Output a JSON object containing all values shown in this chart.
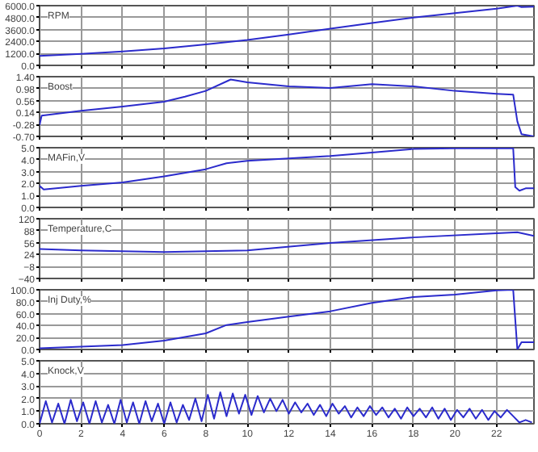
{
  "chart_data": [
    {
      "type": "line",
      "title": "RPM",
      "x": [
        0,
        2,
        4,
        6,
        8,
        10,
        12,
        14,
        16,
        18,
        20,
        22,
        23,
        23.2,
        23.8
      ],
      "values": [
        960,
        1150,
        1400,
        1700,
        2100,
        2550,
        3100,
        3680,
        4250,
        4800,
        5250,
        5700,
        6000,
        5850,
        5900
      ],
      "color": "#2b2bcc",
      "xlim": [
        0,
        23.8
      ],
      "ylim": [
        0,
        6000
      ],
      "yticks": [
        {
          "value": 0,
          "label": "0.0"
        },
        {
          "value": 1200,
          "label": "1200.0"
        },
        {
          "value": 2400,
          "label": "2400.0"
        },
        {
          "value": 3600,
          "label": "3600.0"
        },
        {
          "value": 4800,
          "label": "4800.0"
        },
        {
          "value": 6000,
          "label": "6000.0"
        }
      ],
      "xticks": [
        0,
        2,
        4,
        6,
        8,
        10,
        12,
        14,
        16,
        18,
        20,
        22
      ],
      "grid": true,
      "tick_labels": "y"
    },
    {
      "type": "line",
      "title": "Boost",
      "x": [
        0,
        0.1,
        2,
        4,
        6,
        7,
        8,
        9.2,
        10,
        12,
        14,
        16,
        18,
        20,
        22,
        22.8,
        23,
        23.2,
        23.8
      ],
      "values": [
        -0.3,
        0.03,
        0.2,
        0.35,
        0.52,
        0.7,
        0.9,
        1.3,
        1.2,
        1.06,
        1.0,
        1.14,
        1.06,
        0.9,
        0.8,
        0.77,
        -0.17,
        -0.62,
        -0.7
      ],
      "color": "#2b2bcc",
      "xlim": [
        0,
        23.8
      ],
      "ylim": [
        -0.7,
        1.4
      ],
      "yticks": [
        {
          "value": -0.7,
          "label": "-0.70"
        },
        {
          "value": -0.28,
          "label": "-0.28"
        },
        {
          "value": 0.14,
          "label": "0.14"
        },
        {
          "value": 0.56,
          "label": "0.56"
        },
        {
          "value": 0.98,
          "label": "0.98"
        },
        {
          "value": 1.4,
          "label": "1.40"
        }
      ],
      "xticks": [
        0,
        2,
        4,
        6,
        8,
        10,
        12,
        14,
        16,
        18,
        20,
        22
      ],
      "grid": true,
      "tick_labels": "y"
    },
    {
      "type": "line",
      "title": "MAFin,V",
      "x": [
        0,
        0.2,
        2,
        4,
        6,
        8,
        9,
        10,
        12,
        14,
        16,
        18,
        20,
        22.8,
        22.9,
        23.1,
        23.4,
        23.8
      ],
      "values": [
        1.8,
        1.5,
        1.8,
        2.1,
        2.6,
        3.2,
        3.7,
        3.9,
        4.1,
        4.3,
        4.6,
        4.9,
        4.95,
        4.95,
        1.7,
        1.4,
        1.6,
        1.6
      ],
      "color": "#2b2bcc",
      "xlim": [
        0,
        23.8
      ],
      "ylim": [
        0,
        5
      ],
      "yticks": [
        {
          "value": 0,
          "label": "0.0"
        },
        {
          "value": 1,
          "label": "1.0"
        },
        {
          "value": 2,
          "label": "2.0"
        },
        {
          "value": 3,
          "label": "3.0"
        },
        {
          "value": 4,
          "label": "4.0"
        },
        {
          "value": 5,
          "label": "5.0"
        }
      ],
      "xticks": [
        0,
        2,
        4,
        6,
        8,
        10,
        12,
        14,
        16,
        18,
        20,
        22
      ],
      "grid": true,
      "tick_labels": "y"
    },
    {
      "type": "line",
      "title": "Temperature,C",
      "x": [
        0,
        2,
        6,
        10,
        14,
        18,
        22,
        23,
        23.8
      ],
      "values": [
        39,
        35,
        31,
        35,
        55,
        70,
        81,
        84,
        74
      ],
      "color": "#2b2bcc",
      "xlim": [
        0,
        23.8
      ],
      "ylim": [
        -40,
        120
      ],
      "yticks": [
        -40,
        -8,
        24,
        56,
        88,
        120
      ],
      "xticks": [
        0,
        2,
        4,
        6,
        8,
        10,
        12,
        14,
        16,
        18,
        20,
        22
      ],
      "grid": true,
      "tick_labels": "y"
    },
    {
      "type": "line",
      "title": "Inj Duty,%",
      "x": [
        0,
        4,
        6,
        8,
        9,
        10,
        12,
        14,
        16,
        18,
        20,
        22,
        22.8,
        23,
        23.2,
        23.8
      ],
      "values": [
        2,
        7.5,
        15,
        27,
        41,
        46,
        55,
        64,
        78,
        88,
        92,
        99,
        100,
        0,
        12,
        12
      ],
      "color": "#2b2bcc",
      "xlim": [
        0,
        23.8
      ],
      "ylim": [
        0,
        100
      ],
      "yticks": [
        {
          "value": 0,
          "label": "0.0"
        },
        {
          "value": 20,
          "label": "20.0"
        },
        {
          "value": 40,
          "label": "40.0"
        },
        {
          "value": 60,
          "label": "60.0"
        },
        {
          "value": 80,
          "label": "80.0"
        },
        {
          "value": 100,
          "label": "100.0"
        }
      ],
      "xticks": [
        0,
        2,
        4,
        6,
        8,
        10,
        12,
        14,
        16,
        18,
        20,
        22
      ],
      "grid": true,
      "tick_labels": "y"
    },
    {
      "type": "line",
      "title": "Knock,V",
      "x": [
        0,
        0.3,
        0.6,
        0.9,
        1.2,
        1.5,
        1.8,
        2.1,
        2.4,
        2.7,
        3,
        3.3,
        3.6,
        3.9,
        4.2,
        4.5,
        4.8,
        5.1,
        5.4,
        5.7,
        6,
        6.3,
        6.6,
        6.9,
        7.2,
        7.5,
        7.8,
        8.1,
        8.4,
        8.7,
        9,
        9.3,
        9.6,
        9.9,
        10.2,
        10.5,
        10.8,
        11.1,
        11.4,
        11.7,
        12,
        12.3,
        12.6,
        12.9,
        13.2,
        13.5,
        13.8,
        14.1,
        14.4,
        14.7,
        15,
        15.3,
        15.6,
        15.9,
        16.2,
        16.5,
        16.8,
        17.1,
        17.4,
        17.7,
        18,
        18.3,
        18.6,
        18.9,
        19.2,
        19.5,
        19.8,
        20.1,
        20.4,
        20.7,
        21,
        21.3,
        21.6,
        21.9,
        22.2,
        22.5,
        22.8,
        23.1,
        23.4,
        23.7
      ],
      "values": [
        0,
        1.8,
        0.1,
        1.6,
        0,
        1.9,
        0.2,
        1.7,
        0,
        1.8,
        0.1,
        1.5,
        0,
        1.9,
        0.1,
        1.7,
        0,
        1.8,
        0.2,
        1.6,
        0,
        1.7,
        0.1,
        1.5,
        0.3,
        2.0,
        0.2,
        2.3,
        0.4,
        2.5,
        0.6,
        2.4,
        0.8,
        2.3,
        0.7,
        2.2,
        0.9,
        2.0,
        1.0,
        1.9,
        0.8,
        1.7,
        0.9,
        1.6,
        0.7,
        1.5,
        0.6,
        1.6,
        0.8,
        1.4,
        0.5,
        1.3,
        0.6,
        1.4,
        0.7,
        1.3,
        0.5,
        1.2,
        0.4,
        1.3,
        0.6,
        1.2,
        0.5,
        1.3,
        0.4,
        1.2,
        0.3,
        1.1,
        0.5,
        1.2,
        0.4,
        1.1,
        0.3,
        1.0,
        0.5,
        1.1,
        0.6,
        0.1,
        0.3,
        0.1
      ],
      "color": "#2b2bcc",
      "xlim": [
        0,
        23.8
      ],
      "ylim": [
        0,
        5
      ],
      "yticks": [
        {
          "value": 0,
          "label": "0.0"
        },
        {
          "value": 1,
          "label": "1.0"
        },
        {
          "value": 2,
          "label": "2.0"
        },
        {
          "value": 3,
          "label": "3.0"
        },
        {
          "value": 4,
          "label": "4.0"
        },
        {
          "value": 5,
          "label": "5.0"
        }
      ],
      "xticks": [
        0,
        2,
        4,
        6,
        8,
        10,
        12,
        14,
        16,
        18,
        20,
        22
      ],
      "grid": true
    }
  ]
}
